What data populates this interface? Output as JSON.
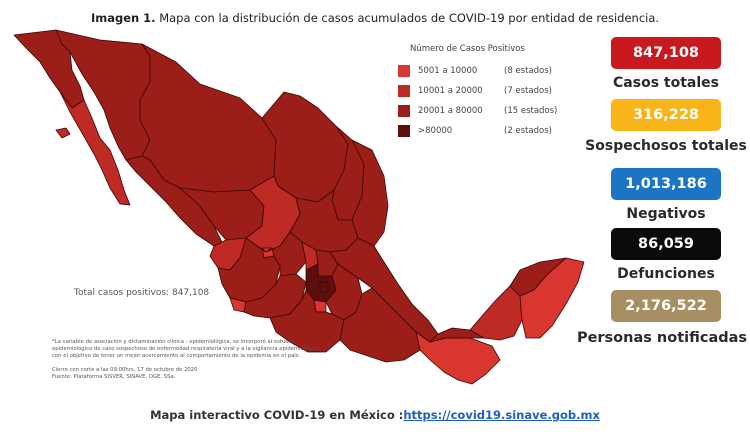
{
  "caption": {
    "bold": "Imagen 1.",
    "text": " Mapa con la distribución de casos acumulados de COVID-19 por entidad de residencia."
  },
  "legend": {
    "title": "Número de Casos Positivos",
    "items": [
      {
        "range": "5001 a  10000",
        "count": "(8 estados)",
        "color": "#d9362f"
      },
      {
        "range": "10001 a  20000",
        "count": "(7 estados)",
        "color": "#bf2b24"
      },
      {
        "range": "20001 a  80000",
        "count": "(15 estados)",
        "color": "#9b1f18"
      },
      {
        "range": ">80000",
        "count": "(2 estados)",
        "color": "#5c0f0c"
      }
    ]
  },
  "map_total": "Total casos positivos: 847,108",
  "footnote": [
    "*La variable de asociación y dictaminación clínica - epidemiológica, se incorporó al estudio",
    "epidemiológico de caso sospechoso de enfermedad respiratoria viral y a la vigilancia epidemiológica",
    "con el objetivo de tener un mejor acercamiento al comportamiento de la epidemia en el país.",
    "",
    "Cierre con corte a las 09:00hrs, 17 de octubre de 2020",
    "Fuente: Plataforma SISVER, SINAVE, DGE, SSa."
  ],
  "stats": [
    {
      "value": "847,108",
      "label": "Casos totales",
      "color": "#c8191e"
    },
    {
      "value": "316,228",
      "label": "Sospechosos totales",
      "color": "#f9b41a"
    },
    {
      "value": "1,013,186",
      "label": "Negativos",
      "color": "#1e74c4"
    },
    {
      "value": "86,059",
      "label": "Defunciones",
      "color": "#0b0b0b"
    },
    {
      "value": "2,176,522",
      "label": "Personas notificadas",
      "color": "#a88f63"
    }
  ],
  "bottom": {
    "text": "Mapa interactivo COVID-19 en México :",
    "link": "https://covid19.sinave.gob.mx"
  },
  "map_colors": {
    "state_fill": "#9b1f18",
    "outline": "#3a0705"
  }
}
